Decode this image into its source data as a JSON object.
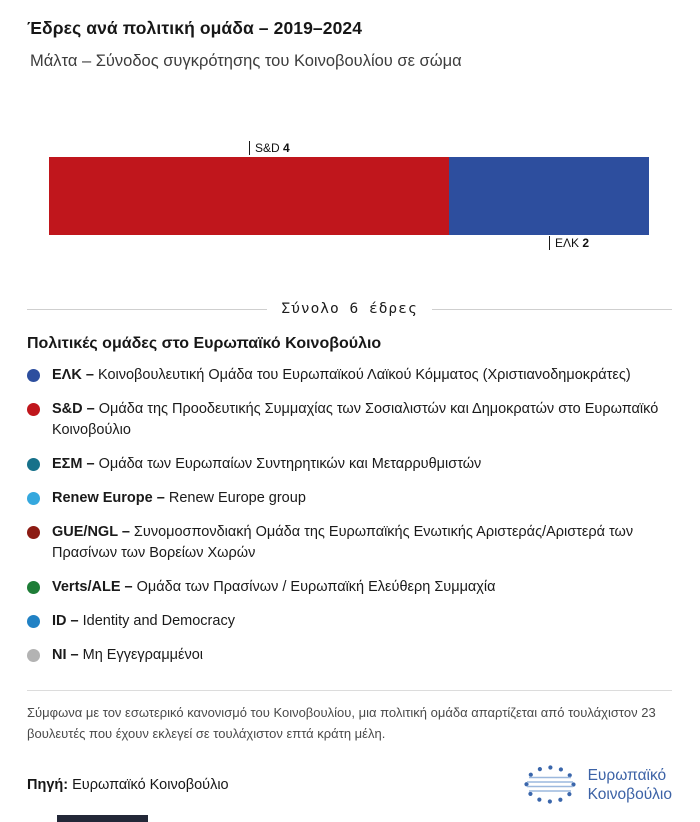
{
  "header": {
    "title": "Έδρες ανά πολιτική ομάδα – 2019–2024",
    "subtitle": "Μάλτα – Σύνοδος συγκρότησης του Κοινοβουλίου σε σώμα"
  },
  "chart_data": {
    "type": "bar",
    "orientation": "horizontal-stacked",
    "title": "Έδρες ανά πολιτική ομάδα – 2019–2024",
    "country": "Μάλτα",
    "total_seats": 6,
    "total_label": "Σύνολο 6 έδρες",
    "series": [
      {
        "name": "S&D",
        "value": 4,
        "color": "#c0161c",
        "label_side": "top"
      },
      {
        "name": "ΕΛΚ",
        "value": 2,
        "color": "#2d4e9e",
        "label_side": "bottom"
      }
    ]
  },
  "legend": {
    "heading": "Πολιτικές ομάδες στο Ευρωπαϊκό Κοινοβούλιο",
    "items": [
      {
        "abbr": "ΕΛΚ –",
        "name": "Κοινοβουλευτική Ομάδα του Ευρωπαϊκού Λαϊκού Κόμματος (Χριστιανοδημοκράτες)",
        "color": "#2d4e9e"
      },
      {
        "abbr": "S&D –",
        "name": "Ομάδα της Προοδευτικής Συμμαχίας των Σοσιαλιστών και Δημοκρατών στο Ευρωπαϊκό Κοινοβούλιο",
        "color": "#c0161c"
      },
      {
        "abbr": "ΕΣΜ –",
        "name": "Ομάδα των Ευρωπαίων Συντηρητικών και Μεταρρυθμιστών",
        "color": "#17718a"
      },
      {
        "abbr": "Renew Europe –",
        "name": "Renew Europe group",
        "color": "#35a8de"
      },
      {
        "abbr": "GUE/NGL –",
        "name": "Συνομοσπονδιακή Ομάδα της Ευρωπαϊκής Ενωτικής Αριστεράς/Αριστερά των Πρασίνων των Βορείων Χωρών",
        "color": "#8c1b13"
      },
      {
        "abbr": "Verts/ALE –",
        "name": "Ομάδα των Πρασίνων / Ευρωπαϊκή Ελεύθερη Συμμαχία",
        "color": "#1e7d37"
      },
      {
        "abbr": "ID –",
        "name": "Identity and Democracy",
        "color": "#2181c4"
      },
      {
        "abbr": "NI –",
        "name": "Μη Εγγεγραμμένοι",
        "color": "#b3b3b3"
      }
    ]
  },
  "footnote": "Σύμφωνα με τον εσωτερικό κανονισμό του Κοινοβουλίου, μια πολιτική ομάδα απαρτίζεται από τουλάχιστον 23 βουλευτές που έχουν εκλεγεί σε τουλάχιστον επτά κράτη μέλη.",
  "source": {
    "label": "Πηγή:",
    "value": "Ευρωπαϊκό Κοινοβούλιο"
  },
  "logo": {
    "line1": "Ευρωπαϊκό",
    "line2": "Κοινοβούλιο"
  }
}
